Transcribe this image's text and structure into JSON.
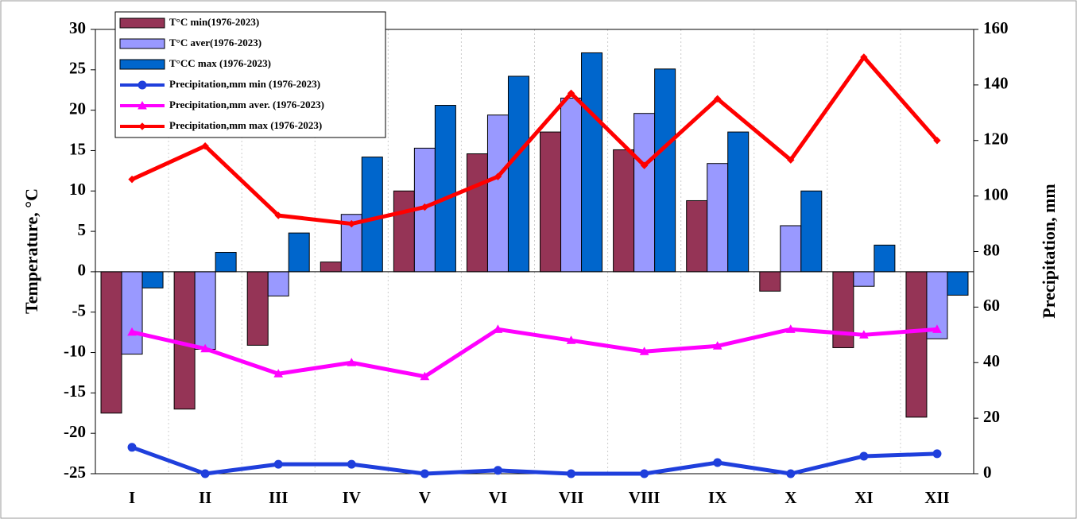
{
  "chart_data": {
    "type": "bar",
    "y_label": "Temperature, °C",
    "y2_label": "Precipitation, mm",
    "categories": [
      "I",
      "II",
      "III",
      "IV",
      "V",
      "VI",
      "VII",
      "VIII",
      "IX",
      "X",
      "XI",
      "XII"
    ],
    "ylim": [
      -25,
      30
    ],
    "yticks": [
      -25,
      -20,
      -15,
      -10,
      -5,
      0,
      5,
      10,
      15,
      20,
      25,
      30
    ],
    "y2lim": [
      0,
      160
    ],
    "y2ticks": [
      0,
      20,
      40,
      60,
      80,
      100,
      120,
      140,
      160
    ],
    "series": [
      {
        "name": "T°C min(1976-2023)",
        "type": "bar",
        "color": "#953456",
        "values": [
          -17.5,
          -17.0,
          -9.1,
          1.2,
          10.0,
          14.6,
          17.3,
          15.1,
          8.8,
          -2.4,
          -9.4,
          -18.0
        ]
      },
      {
        "name": "T°C aver(1976-2023)",
        "type": "bar",
        "color": "#9999ff",
        "values": [
          -10.2,
          -9.6,
          -3.0,
          7.1,
          15.3,
          19.4,
          21.5,
          19.6,
          13.4,
          5.7,
          -1.8,
          -8.3
        ]
      },
      {
        "name": "T°CC max (1976-2023)",
        "type": "bar",
        "color": "#0066cc",
        "values": [
          -2.0,
          2.4,
          4.8,
          14.2,
          20.6,
          24.2,
          27.1,
          25.1,
          17.3,
          10.0,
          3.3,
          -2.9
        ]
      },
      {
        "name": "Precipitation,mm min (1976-2023)",
        "type": "line",
        "axis": "y2",
        "color": "#1f3fdc",
        "marker": "circle",
        "values": [
          9.5,
          0,
          3.4,
          3.4,
          0,
          1.2,
          0,
          0,
          4,
          0,
          6.3,
          7.2
        ]
      },
      {
        "name": "Precipitation,mm aver. (1976-2023)",
        "type": "line",
        "axis": "y2",
        "color": "#ff00ff",
        "marker": "triangle",
        "values": [
          51,
          45,
          36,
          40,
          35,
          52,
          48,
          44,
          46,
          52,
          50,
          52
        ]
      },
      {
        "name": "Precipitation,mm max (1976-2023)",
        "type": "line",
        "axis": "y2",
        "color": "#ff0000",
        "marker": "diamond",
        "values": [
          106,
          118,
          93,
          90,
          96,
          107,
          137,
          111,
          135,
          113,
          150,
          120
        ]
      }
    ]
  }
}
